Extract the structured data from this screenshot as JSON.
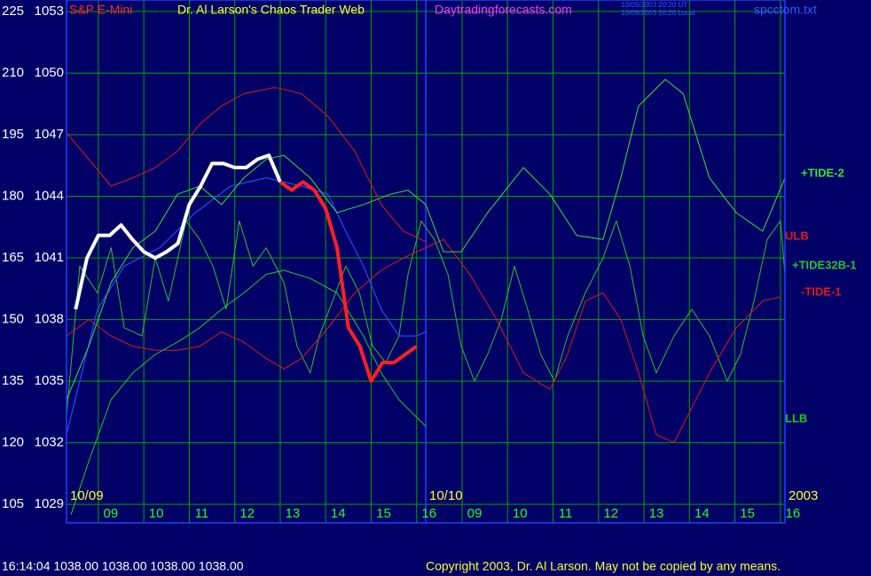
{
  "header": {
    "left": "S&P E-Mini",
    "title": "Dr. Al Larson's Chaos Trader Web",
    "site": "Daytradingforecasts.com",
    "timestamps": [
      "10/09/2003 20:20 UT",
      "10/09/2003 16:20 Local"
    ],
    "file": "spcctom.txt"
  },
  "chart_data": {
    "type": "line",
    "xlim": [
      0.3,
      16.1
    ],
    "xticks": [
      {
        "value": 1,
        "label": "09"
      },
      {
        "value": 2,
        "label": "10"
      },
      {
        "value": 3,
        "label": "11"
      },
      {
        "value": 4,
        "label": "12"
      },
      {
        "value": 5,
        "label": "13"
      },
      {
        "value": 6,
        "label": "14"
      },
      {
        "value": 7,
        "label": "15"
      },
      {
        "value": 8,
        "label": "16"
      },
      {
        "value": 9,
        "label": "09"
      },
      {
        "value": 10,
        "label": "10"
      },
      {
        "value": 11,
        "label": "11"
      },
      {
        "value": 12,
        "label": "12"
      },
      {
        "value": 13,
        "label": "13"
      },
      {
        "value": 14,
        "label": "14"
      },
      {
        "value": 15,
        "label": "15"
      },
      {
        "value": 16,
        "label": "16"
      }
    ],
    "date_labels": [
      {
        "value": 0.3,
        "label": "10/09"
      },
      {
        "value": 8.2,
        "label": "10/10"
      },
      {
        "value": 16.1,
        "label": "2003"
      }
    ],
    "ylim": [
      1028.1,
      1053.56
    ],
    "yticks": [
      1029,
      1032,
      1035,
      1038,
      1041,
      1044,
      1047,
      1050,
      1053
    ],
    "y2lim": [
      100.5,
      227.8
    ],
    "y2ticks": [
      105,
      120,
      135,
      150,
      165,
      180,
      195,
      210,
      225
    ],
    "grid": true,
    "series": [
      {
        "name": "+TIDE32B-1",
        "color": "#2cc02c",
        "line_width": 1,
        "x": [
          0.3,
          0.59,
          0.98,
          1.28,
          1.57,
          1.96,
          2.25,
          2.54,
          2.93,
          3.23,
          3.52,
          3.81,
          4.1,
          4.4,
          4.69,
          5.08,
          5.37,
          5.66,
          5.86,
          6.15,
          6.44,
          6.74,
          7.03,
          7.32,
          7.61,
          7.81,
          8.1,
          8.39,
          8.69,
          8.98,
          9.27,
          9.56,
          9.86,
          10.15,
          10.44,
          10.73,
          11.03,
          11.32,
          11.71,
          12.1,
          12.39,
          12.69,
          12.98,
          13.27,
          13.66,
          14.05,
          14.44,
          14.83,
          15.12,
          15.42,
          15.71,
          16.0,
          16.1
        ],
        "values": [
          1033.3,
          1040.6,
          1039.3,
          1041.5,
          1037.6,
          1037.2,
          1041.0,
          1038.9,
          1042.8,
          1041.9,
          1040.6,
          1038.5,
          1042.8,
          1040.6,
          1041.5,
          1039.8,
          1036.7,
          1035.4,
          1037.2,
          1038.9,
          1040.6,
          1039.3,
          1036.7,
          1035.9,
          1037.2,
          1040.2,
          1042.8,
          1041.9,
          1040.2,
          1036.7,
          1035.0,
          1036.3,
          1038.0,
          1040.6,
          1038.5,
          1036.3,
          1035.0,
          1037.2,
          1039.3,
          1041.0,
          1042.8,
          1040.6,
          1037.2,
          1035.4,
          1037.2,
          1038.5,
          1037.2,
          1035.0,
          1036.3,
          1038.9,
          1041.9,
          1042.8,
          1040.2
        ]
      },
      {
        "name": "-TIDE-1",
        "color": "#e01818",
        "line_width": 1,
        "x": [
          0.3,
          0.79,
          1.28,
          1.76,
          2.25,
          2.74,
          3.23,
          3.71,
          4.2,
          4.69,
          5.08,
          5.47,
          6.05,
          6.64,
          7.22,
          7.71,
          8.2,
          8.59,
          9.17,
          9.76,
          10.35,
          10.93,
          11.32,
          11.71,
          12.1,
          12.49,
          12.88,
          13.27,
          13.66,
          14.05,
          14.44,
          15.03,
          15.61,
          16.0
        ],
        "values": [
          1037.2,
          1038.0,
          1037.2,
          1036.7,
          1036.5,
          1036.5,
          1036.7,
          1037.4,
          1036.9,
          1036.1,
          1035.6,
          1036.1,
          1037.6,
          1039.3,
          1040.4,
          1041.0,
          1041.5,
          1041.9,
          1040.2,
          1038.0,
          1035.4,
          1034.6,
          1036.3,
          1038.9,
          1039.3,
          1038.0,
          1035.4,
          1032.4,
          1032.0,
          1033.7,
          1035.4,
          1037.6,
          1038.9,
          1039.1
        ]
      },
      {
        "name": "LLB",
        "color": "#22c822",
        "line_width": 1,
        "x": [
          0.4,
          0.79,
          1.28,
          1.76,
          2.25,
          2.74,
          3.23,
          3.71,
          4.2,
          4.69,
          5.08,
          5.66,
          6.25,
          6.83,
          7.22,
          7.61,
          8.2
        ],
        "values": [
          1028.5,
          1031.1,
          1034.1,
          1035.4,
          1036.3,
          1036.9,
          1037.6,
          1038.5,
          1039.3,
          1040.2,
          1040.4,
          1040.0,
          1039.3,
          1037.2,
          1035.4,
          1034.1,
          1032.8
        ]
      },
      {
        "name": "ULB",
        "color": "#e01818",
        "line_width": 1,
        "x": [
          0.3,
          0.79,
          1.28,
          1.76,
          2.25,
          2.74,
          3.23,
          3.71,
          4.2,
          4.88,
          5.47,
          6.05,
          6.64,
          7.22,
          7.71,
          8.2
        ],
        "values": [
          1047.1,
          1045.8,
          1044.5,
          1044.9,
          1045.4,
          1046.2,
          1047.5,
          1048.4,
          1049.0,
          1049.3,
          1049.0,
          1047.9,
          1046.2,
          1043.6,
          1042.3,
          1041.8
        ]
      },
      {
        "color": "#2848ff",
        "line_width": 1.2,
        "x": [
          0.3,
          0.59,
          0.98,
          1.57,
          2.35,
          3.13,
          3.91,
          4.69,
          5.47,
          6.05,
          6.44,
          6.83,
          7.22,
          7.61,
          8.0,
          8.2
        ],
        "values": [
          1032.4,
          1035.0,
          1038.5,
          1040.6,
          1041.5,
          1043.2,
          1044.5,
          1044.9,
          1044.5,
          1044.1,
          1042.3,
          1040.6,
          1038.5,
          1037.2,
          1037.2,
          1037.4
        ]
      },
      {
        "name": "+TIDE-2",
        "color": "#38e038",
        "line_width": 1,
        "x": [
          0.3,
          0.79,
          1.28,
          1.76,
          2.25,
          2.74,
          3.23,
          3.71,
          4.2,
          4.69,
          5.08,
          5.66,
          6.25,
          6.83,
          7.42,
          7.81,
          8.2,
          8.59,
          8.98,
          9.56,
          10.35,
          10.93,
          11.52,
          12.1,
          12.49,
          12.88,
          13.47,
          13.86,
          14.44,
          15.03,
          15.61,
          16.1
        ],
        "values": [
          1034.1,
          1036.7,
          1039.8,
          1041.5,
          1042.3,
          1044.1,
          1044.5,
          1043.6,
          1044.9,
          1045.8,
          1046.0,
          1044.9,
          1043.2,
          1043.6,
          1044.1,
          1044.3,
          1043.6,
          1041.3,
          1041.3,
          1043.2,
          1045.4,
          1044.1,
          1042.1,
          1041.9,
          1044.9,
          1048.4,
          1049.7,
          1049.0,
          1044.9,
          1043.2,
          1042.3,
          1044.9
        ]
      },
      {
        "color": "#ffffff",
        "line_width": 4,
        "x": [
          0.5,
          0.75,
          1,
          1.25,
          1.5,
          1.75,
          2,
          2.25,
          2.5,
          2.75,
          3,
          3.25,
          3.5,
          3.75,
          4,
          4.25,
          4.5,
          4.75,
          5
        ],
        "values": [
          1038.5,
          1041.0,
          1042.1,
          1042.1,
          1042.6,
          1041.9,
          1041.3,
          1041.0,
          1041.3,
          1041.7,
          1043.6,
          1044.5,
          1045.6,
          1045.6,
          1045.4,
          1045.4,
          1045.8,
          1046.0,
          1044.7
        ]
      },
      {
        "color": "#ff2020",
        "line_width": 4,
        "x": [
          5,
          5.25,
          5.5,
          5.75,
          6,
          6.25,
          6.5,
          6.75,
          7,
          7.25,
          7.5,
          7.75,
          8
        ],
        "values": [
          1044.7,
          1044.3,
          1044.7,
          1044.3,
          1043.4,
          1041.5,
          1037.6,
          1036.7,
          1035.0,
          1035.9,
          1035.9,
          1036.3,
          1036.7
        ]
      }
    ]
  },
  "footer": {
    "quote": "16:14:04 1038.00 1038.00 1038.00 1038.00",
    "copyright": "Copyright 2003, Dr. Al Larson. May not be copied by any means."
  }
}
